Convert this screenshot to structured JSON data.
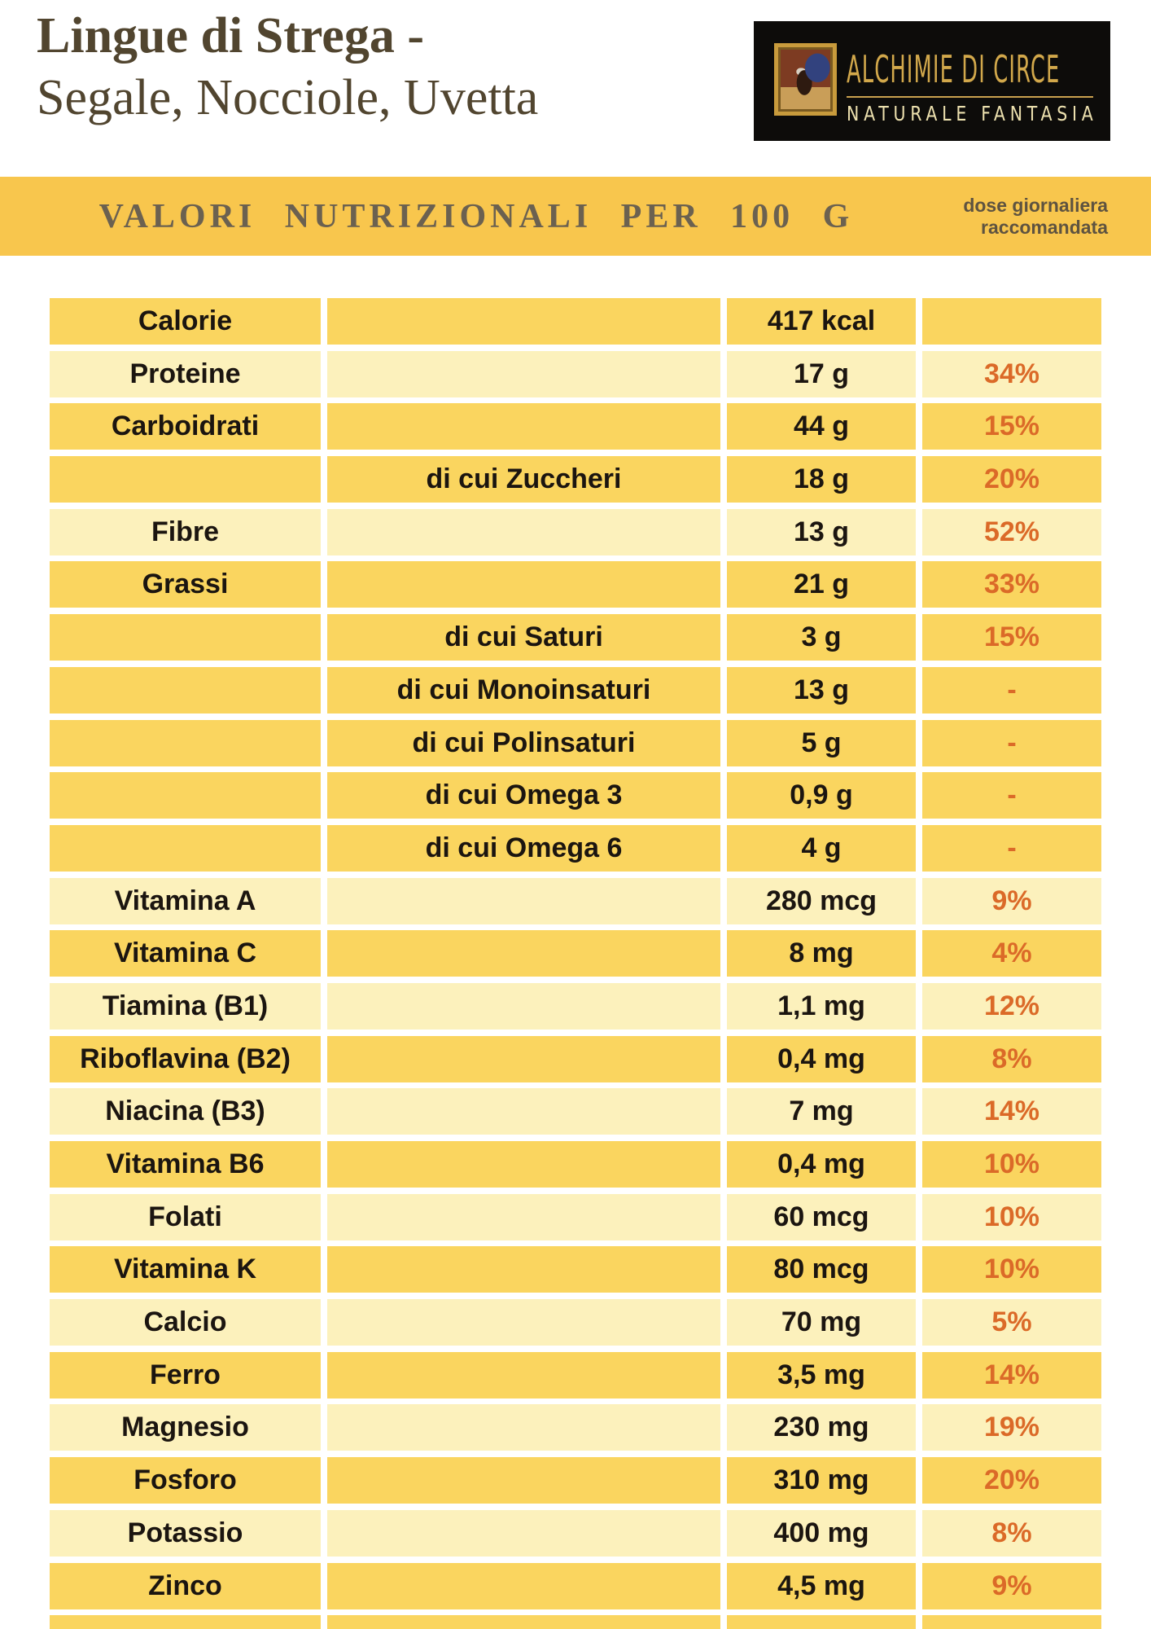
{
  "header": {
    "title": "Lingue di Strega -",
    "subtitle": "Segale, Nocciole, Uvetta",
    "logo": {
      "brand": "ALCHIMIE DI CIRCE",
      "tagline": "NATURALE FANTASIA"
    }
  },
  "banner": {
    "title": "VALORI NUTRIZIONALI PER 100 G",
    "note_line1": "dose giornaliera",
    "note_line2": "raccomandata"
  },
  "colors": {
    "banner_bg": "#F8C64D",
    "row_dark": "#FAD55F",
    "row_light": "#FCF1BC",
    "rda_orange": "#DB6A28",
    "text_dark": "#1b1510",
    "title_brown": "#51452F",
    "logo_gold": "#D2A84B"
  },
  "table": {
    "columns": [
      "nutrient",
      "sub_item",
      "value",
      "rda_percent"
    ],
    "rows": [
      {
        "name": "Calorie",
        "sub": "",
        "value": "417 kcal",
        "rda": "",
        "shade": "dark"
      },
      {
        "name": "Proteine",
        "sub": "",
        "value": "17 g",
        "rda": "34%",
        "shade": "light"
      },
      {
        "name": "Carboidrati",
        "sub": "",
        "value": "44 g",
        "rda": "15%",
        "shade": "dark"
      },
      {
        "name": "",
        "sub": "di cui Zuccheri",
        "value": "18 g",
        "rda": "20%",
        "shade": "dark"
      },
      {
        "name": "Fibre",
        "sub": "",
        "value": "13 g",
        "rda": "52%",
        "shade": "light"
      },
      {
        "name": "Grassi",
        "sub": "",
        "value": "21 g",
        "rda": "33%",
        "shade": "dark"
      },
      {
        "name": "",
        "sub": "di cui Saturi",
        "value": "3 g",
        "rda": "15%",
        "shade": "dark"
      },
      {
        "name": "",
        "sub": "di cui Monoinsaturi",
        "value": "13 g",
        "rda": "-",
        "shade": "dark"
      },
      {
        "name": "",
        "sub": "di cui Polinsaturi",
        "value": "5 g",
        "rda": "-",
        "shade": "dark"
      },
      {
        "name": "",
        "sub": "di cui Omega 3",
        "value": "0,9 g",
        "rda": "-",
        "shade": "dark"
      },
      {
        "name": "",
        "sub": "di cui Omega 6",
        "value": "4 g",
        "rda": "-",
        "shade": "dark"
      },
      {
        "name": "Vitamina A",
        "sub": "",
        "value": "280 mcg",
        "rda": "9%",
        "shade": "light"
      },
      {
        "name": "Vitamina C",
        "sub": "",
        "value": "8 mg",
        "rda": "4%",
        "shade": "dark"
      },
      {
        "name": "Tiamina (B1)",
        "sub": "",
        "value": "1,1 mg",
        "rda": "12%",
        "shade": "light"
      },
      {
        "name": "Riboflavina (B2)",
        "sub": "",
        "value": "0,4 mg",
        "rda": "8%",
        "shade": "dark"
      },
      {
        "name": "Niacina (B3)",
        "sub": "",
        "value": "7 mg",
        "rda": "14%",
        "shade": "light"
      },
      {
        "name": "Vitamina B6",
        "sub": "",
        "value": "0,4 mg",
        "rda": "10%",
        "shade": "dark"
      },
      {
        "name": "Folati",
        "sub": "",
        "value": "60 mcg",
        "rda": "10%",
        "shade": "light"
      },
      {
        "name": "Vitamina K",
        "sub": "",
        "value": "80 mcg",
        "rda": "10%",
        "shade": "dark"
      },
      {
        "name": "Calcio",
        "sub": "",
        "value": "70 mg",
        "rda": "5%",
        "shade": "light"
      },
      {
        "name": "Ferro",
        "sub": "",
        "value": "3,5 mg",
        "rda": "14%",
        "shade": "dark"
      },
      {
        "name": "Magnesio",
        "sub": "",
        "value": "230 mg",
        "rda": "19%",
        "shade": "light"
      },
      {
        "name": "Fosforo",
        "sub": "",
        "value": "310 mg",
        "rda": "20%",
        "shade": "dark"
      },
      {
        "name": "Potassio",
        "sub": "",
        "value": "400 mg",
        "rda": "8%",
        "shade": "light"
      },
      {
        "name": "Zinco",
        "sub": "",
        "value": "4,5 mg",
        "rda": "9%",
        "shade": "dark"
      },
      {
        "name": "",
        "sub": "",
        "value": "",
        "rda": "",
        "shade": "dark"
      }
    ]
  }
}
